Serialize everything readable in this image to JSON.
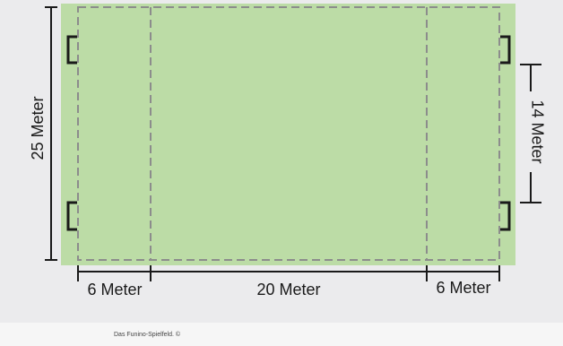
{
  "diagram": {
    "field_color": "#bcdca6",
    "line_color": "#8c8c8c",
    "dimension_color": "#1a1a1a",
    "labels": {
      "length_total": "25 Meter",
      "goal_spacing": "14 Meter",
      "zone_left": "6 Meter",
      "zone_middle": "20 Meter",
      "zone_right": "6 Meter"
    }
  },
  "caption": {
    "text": "Das Funino-Spielfeld. ©"
  }
}
